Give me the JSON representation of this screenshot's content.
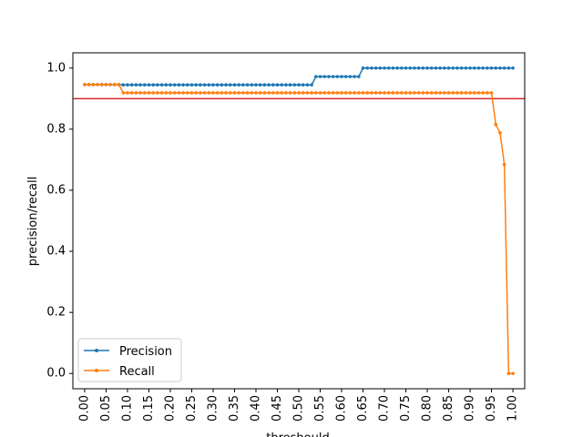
{
  "chart_data": {
    "type": "line",
    "title": "",
    "xlabel": "threshould",
    "ylabel": "precision/recall",
    "xlim": [
      -0.0275,
      1.0275
    ],
    "ylim": [
      -0.05,
      1.05
    ],
    "x_ticks": [
      "0.00",
      "0.05",
      "0.10",
      "0.15",
      "0.20",
      "0.25",
      "0.30",
      "0.35",
      "0.40",
      "0.45",
      "0.50",
      "0.55",
      "0.60",
      "0.65",
      "0.70",
      "0.75",
      "0.80",
      "0.85",
      "0.90",
      "0.95",
      "1.00"
    ],
    "y_ticks": [
      "0.0",
      "0.2",
      "0.4",
      "0.6",
      "0.8",
      "1.0"
    ],
    "grid": false,
    "legend_position": "lower-left",
    "hline": {
      "y": 0.9,
      "color": "#d62728"
    },
    "series": [
      {
        "name": "Precision",
        "color": "#1f77b4",
        "segments": [
          {
            "from": 0.0,
            "to": 0.08,
            "value": 0.946
          },
          {
            "from": 0.09,
            "to": 0.53,
            "value": 0.945
          },
          {
            "from": 0.54,
            "to": 0.64,
            "value": 0.972
          },
          {
            "from": 0.65,
            "to": 1.0,
            "value": 1.0
          }
        ]
      },
      {
        "name": "Recall",
        "color": "#ff7f0e",
        "segments": [
          {
            "from": 0.0,
            "to": 0.08,
            "value": 0.946
          },
          {
            "from": 0.09,
            "to": 0.95,
            "value": 0.919
          }
        ],
        "points": [
          {
            "x": 0.96,
            "y": 0.815
          },
          {
            "x": 0.97,
            "y": 0.788
          },
          {
            "x": 0.98,
            "y": 0.684
          },
          {
            "x": 0.99,
            "y": 0.0
          },
          {
            "x": 1.0,
            "y": 0.0
          }
        ]
      }
    ]
  }
}
